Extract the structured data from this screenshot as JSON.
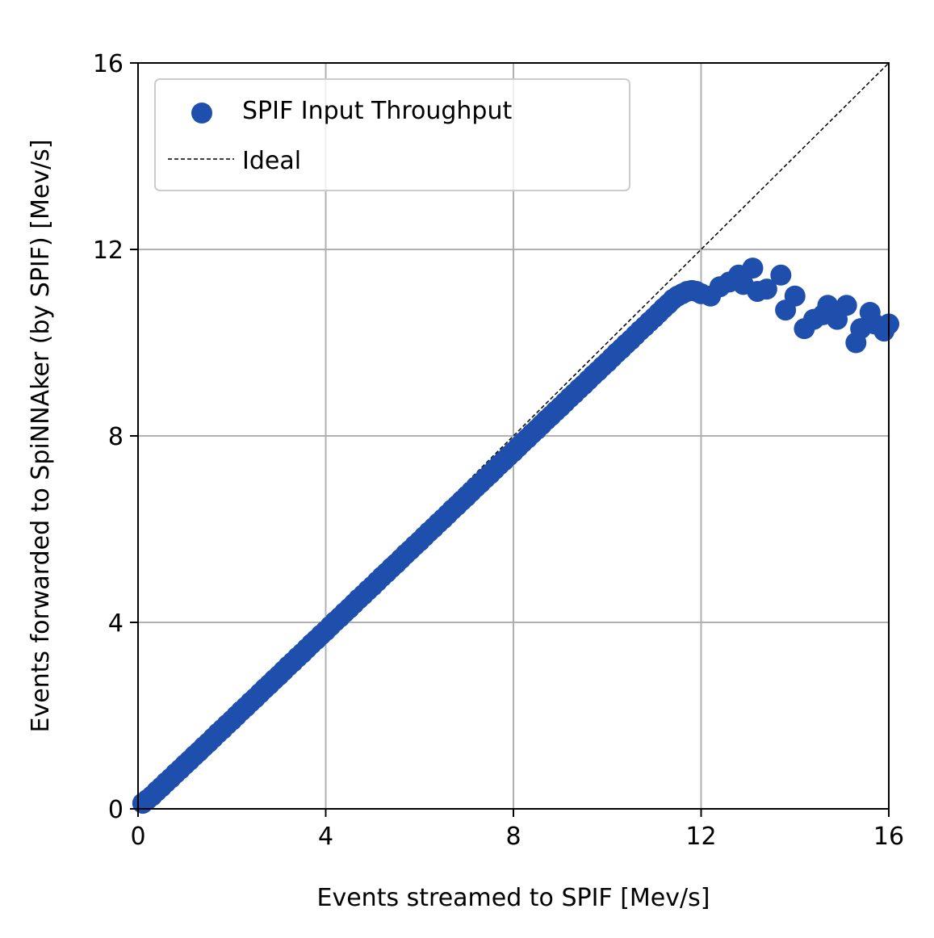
{
  "chart_data": {
    "type": "scatter",
    "title": "",
    "xlabel": "Events streamed to SPIF [Mev/s]",
    "ylabel": "Events forwarded to SpiNNAker (by SPIF) [Mev/s]",
    "xlim": [
      0,
      16
    ],
    "ylim": [
      0,
      16
    ],
    "xticks": [
      "0",
      "4",
      "8",
      "12",
      "16"
    ],
    "yticks": [
      "0",
      "4",
      "8",
      "12",
      "16"
    ],
    "grid": true,
    "legend_position": "top-left",
    "series": [
      {
        "name": "SPIF Input Throughput",
        "kind": "scatter",
        "color": "#1f4fad",
        "x": [
          0.1,
          0.2,
          0.3,
          0.4,
          0.5,
          0.6,
          0.7,
          0.8,
          0.9,
          1.0,
          1.1,
          1.2,
          1.3,
          1.4,
          1.5,
          1.6,
          1.7,
          1.8,
          1.9,
          2.0,
          2.1,
          2.2,
          2.3,
          2.4,
          2.5,
          2.6,
          2.7,
          2.8,
          2.9,
          3.0,
          3.1,
          3.2,
          3.3,
          3.4,
          3.5,
          3.6,
          3.7,
          3.8,
          3.9,
          4.0,
          4.1,
          4.2,
          4.3,
          4.4,
          4.5,
          4.6,
          4.7,
          4.8,
          4.9,
          5.0,
          5.1,
          5.2,
          5.3,
          5.4,
          5.5,
          5.6,
          5.7,
          5.8,
          5.9,
          6.0,
          6.1,
          6.2,
          6.3,
          6.4,
          6.5,
          6.6,
          6.7,
          6.8,
          6.9,
          7.0,
          7.1,
          7.2,
          7.3,
          7.4,
          7.5,
          7.6,
          7.7,
          7.8,
          7.9,
          8.0,
          8.1,
          8.2,
          8.3,
          8.4,
          8.5,
          8.6,
          8.7,
          8.8,
          8.9,
          9.0,
          9.1,
          9.2,
          9.3,
          9.4,
          9.5,
          9.6,
          9.7,
          9.8,
          9.9,
          10.0,
          10.1,
          10.2,
          10.3,
          10.4,
          10.5,
          10.6,
          10.7,
          10.8,
          10.9,
          11.0,
          11.1,
          11.2,
          11.3,
          11.4,
          11.5,
          11.6,
          11.7,
          11.8,
          11.9,
          12.0,
          12.2,
          12.4,
          12.6,
          12.8,
          12.9,
          13.1,
          13.2,
          13.4,
          13.7,
          13.8,
          14.0,
          14.2,
          14.4,
          14.6,
          14.7,
          14.9,
          15.1,
          15.3,
          15.4,
          15.6,
          15.7,
          15.9,
          16.0
        ],
        "y": [
          0.12,
          0.2,
          0.28,
          0.38,
          0.47,
          0.57,
          0.66,
          0.76,
          0.85,
          0.95,
          1.04,
          1.14,
          1.23,
          1.33,
          1.42,
          1.52,
          1.62,
          1.71,
          1.81,
          1.9,
          2.0,
          2.1,
          2.19,
          2.29,
          2.38,
          2.48,
          2.58,
          2.67,
          2.77,
          2.86,
          2.96,
          3.06,
          3.15,
          3.25,
          3.34,
          3.44,
          3.54,
          3.63,
          3.73,
          3.82,
          3.92,
          4.02,
          4.11,
          4.21,
          4.3,
          4.4,
          4.5,
          4.59,
          4.69,
          4.78,
          4.88,
          4.98,
          5.07,
          5.17,
          5.26,
          5.36,
          5.46,
          5.55,
          5.65,
          5.74,
          5.84,
          5.94,
          6.03,
          6.13,
          6.22,
          6.32,
          6.42,
          6.51,
          6.61,
          6.7,
          6.8,
          6.9,
          6.99,
          7.09,
          7.18,
          7.28,
          7.38,
          7.47,
          7.57,
          7.66,
          7.76,
          7.86,
          7.95,
          8.05,
          8.14,
          8.24,
          8.34,
          8.43,
          8.53,
          8.62,
          8.72,
          8.82,
          8.91,
          9.01,
          9.1,
          9.2,
          9.3,
          9.39,
          9.49,
          9.58,
          9.68,
          9.78,
          9.87,
          9.97,
          10.06,
          10.16,
          10.26,
          10.35,
          10.45,
          10.54,
          10.64,
          10.74,
          10.83,
          10.93,
          11.0,
          11.05,
          11.1,
          11.12,
          11.1,
          11.05,
          11.0,
          11.2,
          11.3,
          11.45,
          11.25,
          11.6,
          11.1,
          11.15,
          11.45,
          10.7,
          11.0,
          10.3,
          10.5,
          10.6,
          10.8,
          10.5,
          10.8,
          10.0,
          10.3,
          10.65,
          10.4,
          10.25,
          10.4
        ]
      },
      {
        "name": "Ideal",
        "kind": "line",
        "style": "dashed",
        "color": "#000000",
        "x": [
          0,
          16
        ],
        "y": [
          0,
          16
        ]
      }
    ]
  }
}
